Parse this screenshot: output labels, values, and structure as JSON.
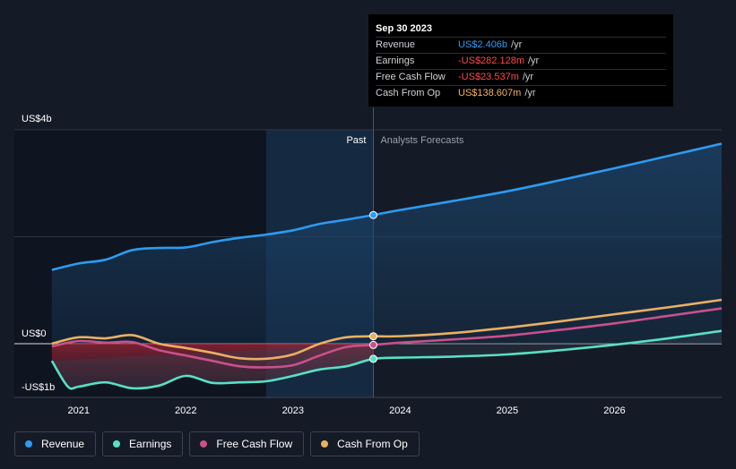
{
  "tooltip": {
    "date": "Sep 30 2023",
    "rows": [
      {
        "label": "Revenue",
        "value": "US$2.406b",
        "unit": "/yr",
        "color": "#2d9bf0"
      },
      {
        "label": "Earnings",
        "value": "-US$282.128m",
        "unit": "/yr",
        "color": "#ff4a4a"
      },
      {
        "label": "Free Cash Flow",
        "value": "-US$23.537m",
        "unit": "/yr",
        "color": "#ff4a4a"
      },
      {
        "label": "Cash From Op",
        "value": "US$138.607m",
        "unit": "/yr",
        "color": "#f5b35e"
      }
    ]
  },
  "legend": [
    {
      "label": "Revenue",
      "color": "#2d9bf0"
    },
    {
      "label": "Earnings",
      "color": "#58e0c5"
    },
    {
      "label": "Free Cash Flow",
      "color": "#c8518b"
    },
    {
      "label": "Cash From Op",
      "color": "#e9b063"
    }
  ],
  "chart_data": {
    "type": "line",
    "title": "",
    "xlabel": "",
    "ylabel": "",
    "ylim": [
      -1.0,
      4.0
    ],
    "x_ticks": [
      "2021",
      "2022",
      "2023",
      "2024",
      "2025",
      "2026"
    ],
    "x_tick_values": [
      2021.0,
      2022.0,
      2023.0,
      2024.0,
      2025.0,
      2026.0
    ],
    "y_labels": [
      {
        "value": 4.0,
        "label": "US$4b"
      },
      {
        "value": 0.0,
        "label": "US$0"
      },
      {
        "value": -1.0,
        "label": "-US$1b"
      }
    ],
    "past_label": "Past",
    "forecast_label": "Analysts Forecasts",
    "past_end": 2023.75,
    "highlight_range": [
      2022.75,
      2023.75
    ],
    "selected_x": 2023.75,
    "series": [
      {
        "name": "Revenue",
        "color": "#2d9bf0",
        "x": [
          2020.75,
          2021.0,
          2021.25,
          2021.5,
          2021.75,
          2022.0,
          2022.25,
          2022.5,
          2022.75,
          2023.0,
          2023.25,
          2023.5,
          2023.75,
          2024.0,
          2024.5,
          2025.0,
          2025.5,
          2026.0,
          2026.5,
          2027.0
        ],
        "y": [
          1.38,
          1.5,
          1.57,
          1.75,
          1.79,
          1.8,
          1.9,
          1.98,
          2.04,
          2.12,
          2.24,
          2.32,
          2.406,
          2.5,
          2.67,
          2.85,
          3.06,
          3.28,
          3.51,
          3.74
        ]
      },
      {
        "name": "Earnings",
        "color": "#58e0c5",
        "x": [
          2020.75,
          2020.9,
          2021.0,
          2021.25,
          2021.5,
          2021.75,
          2022.0,
          2022.25,
          2022.5,
          2022.75,
          2023.0,
          2023.25,
          2023.5,
          2023.75,
          2024.0,
          2024.5,
          2025.0,
          2025.5,
          2026.0,
          2026.5,
          2027.0
        ],
        "y": [
          -0.32,
          -0.8,
          -0.8,
          -0.72,
          -0.83,
          -0.78,
          -0.6,
          -0.73,
          -0.72,
          -0.7,
          -0.6,
          -0.48,
          -0.42,
          -0.282,
          -0.26,
          -0.24,
          -0.2,
          -0.12,
          -0.02,
          0.1,
          0.24
        ]
      },
      {
        "name": "Free Cash Flow",
        "color": "#c8518b",
        "x": [
          2020.75,
          2021.0,
          2021.25,
          2021.5,
          2021.75,
          2022.0,
          2022.25,
          2022.5,
          2022.75,
          2023.0,
          2023.25,
          2023.5,
          2023.75,
          2024.0,
          2024.5,
          2025.0,
          2025.5,
          2026.0,
          2026.5,
          2027.0
        ],
        "y": [
          -0.05,
          0.05,
          0.02,
          0.03,
          -0.12,
          -0.22,
          -0.32,
          -0.42,
          -0.44,
          -0.4,
          -0.22,
          -0.06,
          -0.0235,
          0.02,
          0.08,
          0.15,
          0.26,
          0.38,
          0.52,
          0.66
        ]
      },
      {
        "name": "Cash From Op",
        "color": "#e9b063",
        "x": [
          2020.75,
          2021.0,
          2021.25,
          2021.5,
          2021.75,
          2022.0,
          2022.25,
          2022.5,
          2022.75,
          2023.0,
          2023.25,
          2023.5,
          2023.75,
          2024.0,
          2024.5,
          2025.0,
          2025.5,
          2026.0,
          2026.5,
          2027.0
        ],
        "y": [
          0.0,
          0.12,
          0.1,
          0.16,
          0.0,
          -0.08,
          -0.17,
          -0.27,
          -0.28,
          -0.2,
          0.0,
          0.12,
          0.1386,
          0.14,
          0.2,
          0.3,
          0.42,
          0.55,
          0.68,
          0.82
        ]
      }
    ]
  }
}
